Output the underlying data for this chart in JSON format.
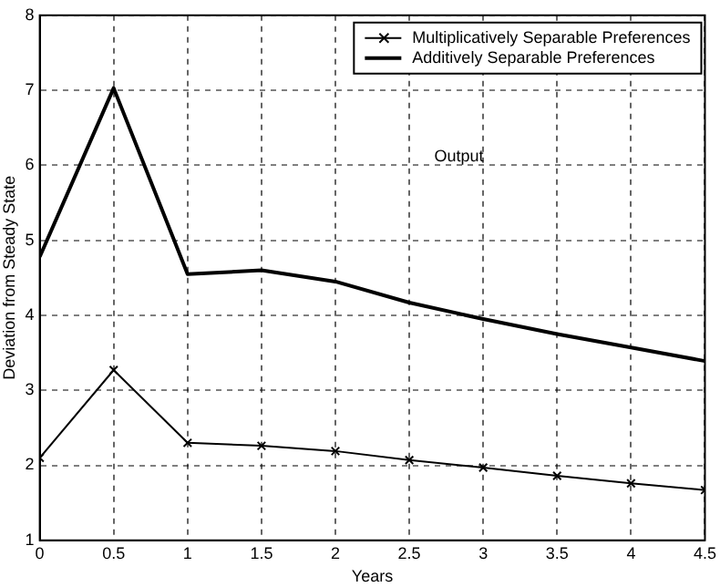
{
  "chart_data": {
    "type": "line",
    "xlabel": "Years",
    "ylabel": "Deviation from Steady State",
    "annotations": [
      "Output"
    ],
    "x": [
      0,
      0.5,
      1,
      1.5,
      2,
      2.5,
      3,
      3.5,
      4,
      4.5
    ],
    "series": [
      {
        "name": "Multiplicatively Separable Preferences",
        "color": "#000000",
        "marker": "cross",
        "values": [
          2.1,
          3.27,
          2.3,
          2.26,
          2.19,
          2.07,
          1.97,
          1.86,
          1.76,
          1.67
        ]
      },
      {
        "name": "Additively Separable Preferences",
        "color": "#000000",
        "marker": "none",
        "values": [
          4.78,
          7.03,
          4.55,
          4.6,
          4.45,
          4.17,
          3.95,
          3.75,
          3.57,
          3.39
        ]
      }
    ],
    "xlim": [
      0,
      4.5
    ],
    "xticks": [
      0,
      0.5,
      1,
      1.5,
      2,
      2.5,
      3,
      3.5,
      4,
      4.5
    ],
    "ylim": [
      1,
      8
    ],
    "yticks": [
      1,
      2,
      3,
      4,
      5,
      6,
      7,
      8
    ],
    "grid": true,
    "legend": "top right",
    "line_style": "solid"
  }
}
